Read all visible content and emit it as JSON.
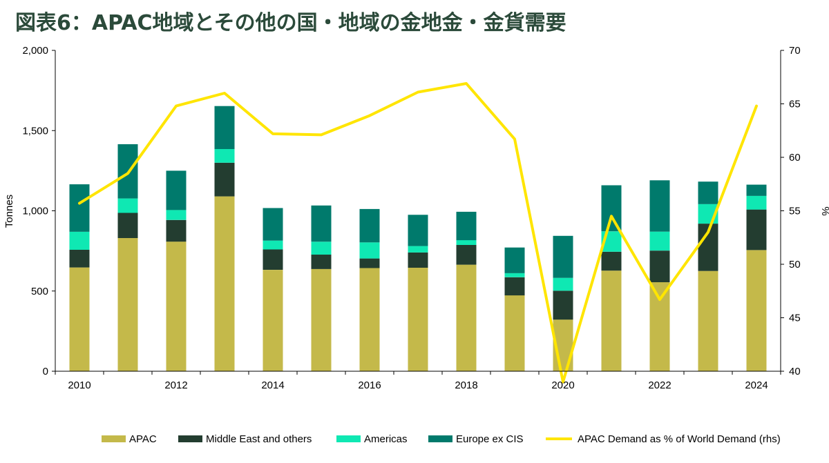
{
  "title": "図表6：APAC地域とその他の国・地域の金地金・金貨需要",
  "chart_data": {
    "type": "bar",
    "stacked": true,
    "title": "図表6：APAC地域とその他の国・地域の金地金・金貨需要",
    "categories": [
      2010,
      2011,
      2012,
      2013,
      2014,
      2015,
      2016,
      2017,
      2018,
      2019,
      2020,
      2021,
      2022,
      2023,
      2024
    ],
    "x_tick_labels": [
      "2010",
      "2012",
      "2014",
      "2016",
      "2018",
      "2020",
      "2022",
      "2024"
    ],
    "ylabel": "Tonnes",
    "y2label": "%",
    "ylim": [
      0,
      2000
    ],
    "y_ticks": [
      0,
      500,
      1000,
      1500,
      2000
    ],
    "y_tick_labels": [
      "0",
      "500",
      "1,000",
      "1,500",
      "2,000"
    ],
    "y2lim": [
      40,
      70
    ],
    "y2_ticks": [
      40,
      45,
      50,
      55,
      60,
      65,
      70
    ],
    "y2_tick_labels": [
      "40",
      "45",
      "50",
      "55",
      "60",
      "65",
      "70"
    ],
    "grid": false,
    "legend_position": "bottom",
    "series": [
      {
        "name": "APAC",
        "type": "bar",
        "axis": "left",
        "color": "#c4b94a",
        "values": [
          647,
          830,
          808,
          1090,
          632,
          637,
          643,
          645,
          664,
          473,
          322,
          627,
          555,
          625,
          755
        ]
      },
      {
        "name": "Middle East and others",
        "type": "bar",
        "axis": "left",
        "color": "#233d30",
        "values": [
          110,
          157,
          135,
          210,
          127,
          90,
          60,
          95,
          123,
          113,
          180,
          118,
          197,
          295,
          253
        ]
      },
      {
        "name": "Americas",
        "type": "bar",
        "axis": "left",
        "color": "#0fe8b3",
        "values": [
          112,
          90,
          62,
          85,
          55,
          80,
          100,
          40,
          30,
          25,
          80,
          127,
          118,
          122,
          85
        ]
      },
      {
        "name": "Europe ex CIS",
        "type": "bar",
        "axis": "left",
        "color": "#007a6c",
        "values": [
          296,
          338,
          245,
          268,
          203,
          226,
          208,
          195,
          177,
          160,
          262,
          287,
          320,
          140,
          70
        ]
      },
      {
        "name": "APAC Demand as % of World Demand (rhs)",
        "type": "line",
        "axis": "right",
        "color": "#ffe500",
        "values": [
          55.7,
          58.5,
          64.8,
          66.0,
          62.2,
          62.1,
          63.9,
          66.1,
          66.9,
          61.7,
          39.0,
          54.5,
          46.7,
          53.0,
          64.8
        ]
      }
    ]
  }
}
